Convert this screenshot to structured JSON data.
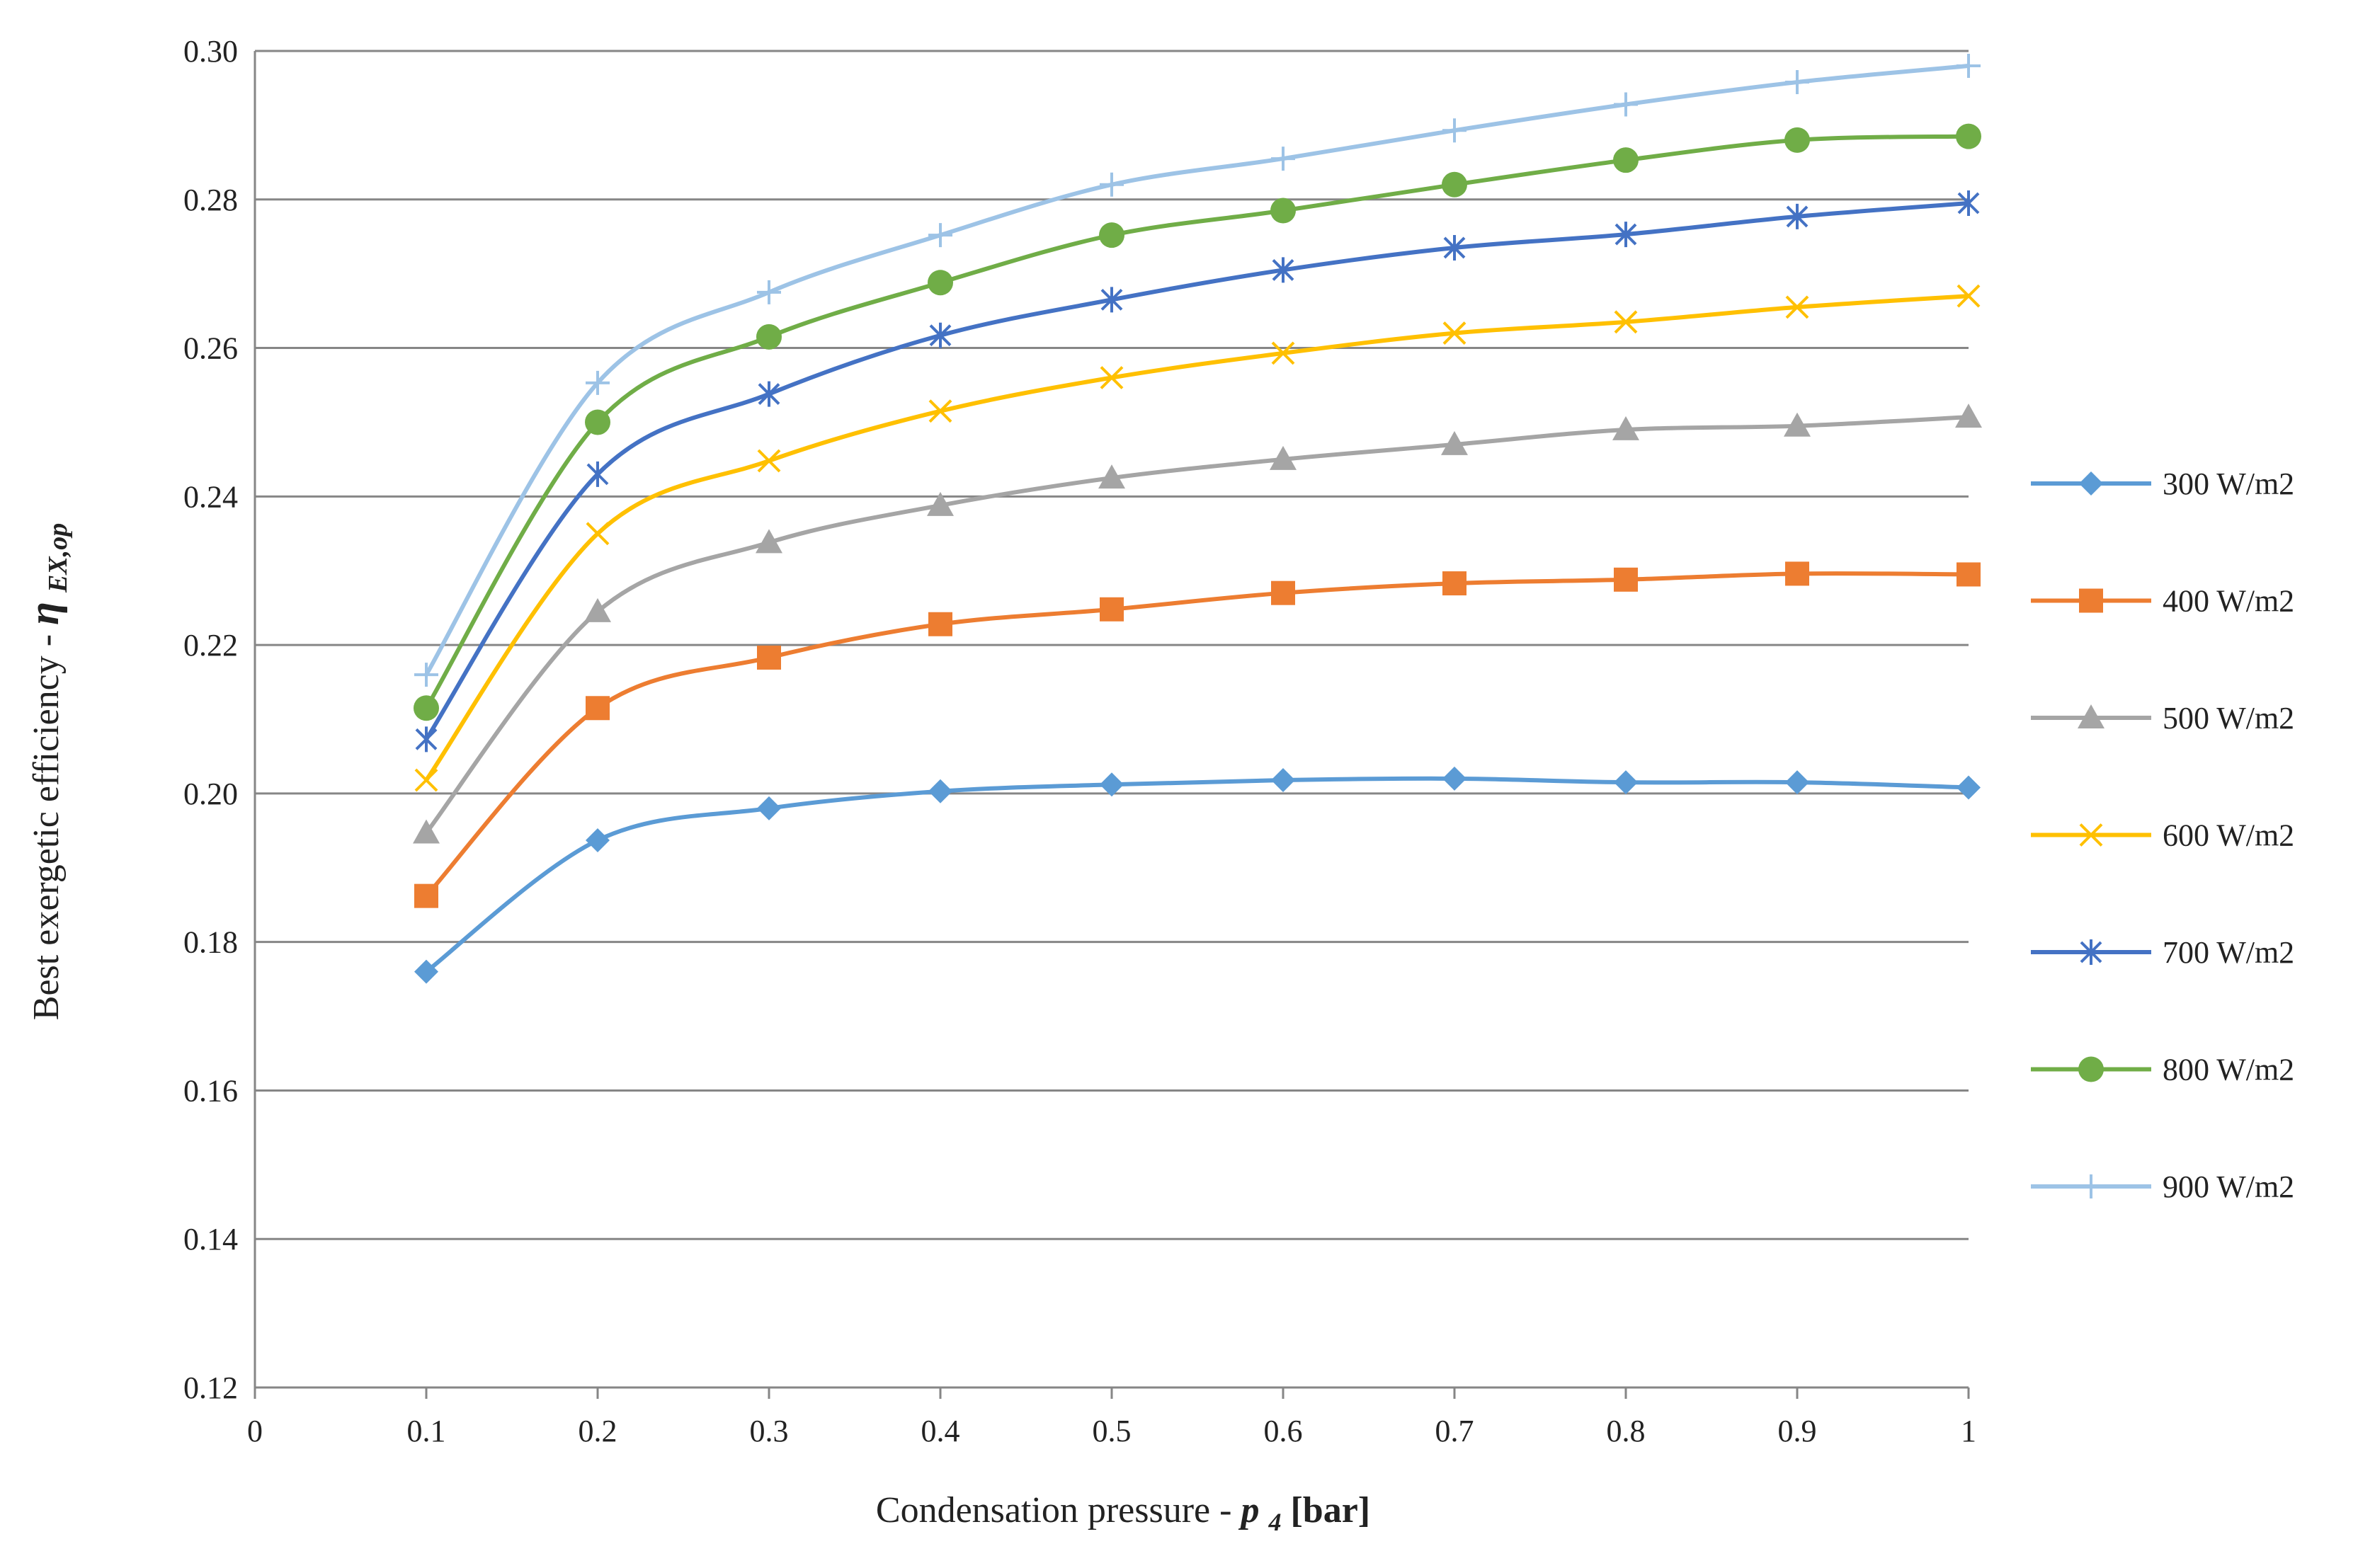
{
  "chart_data": {
    "type": "line",
    "title": "",
    "xlabel": {
      "text": "Condensation pressure - ",
      "symbol": "p",
      "subscript": "4",
      "unit": " [bar]"
    },
    "ylabel": {
      "text": "Best exergetic efficiency - ",
      "symbol": "η",
      "subscript": "EX,op"
    },
    "xlim": [
      0,
      1
    ],
    "ylim": [
      0.12,
      0.3
    ],
    "x_ticks": [
      0,
      0.1,
      0.2,
      0.3,
      0.4,
      0.5,
      0.6,
      0.7,
      0.8,
      0.9,
      1
    ],
    "x_tick_labels": [
      "0",
      "0.1",
      "0.2",
      "0.3",
      "0.4",
      "0.5",
      "0.6",
      "0.7",
      "0.8",
      "0.9",
      "1"
    ],
    "y_ticks": [
      0.12,
      0.14,
      0.16,
      0.18,
      0.2,
      0.22,
      0.24,
      0.26,
      0.28,
      0.3
    ],
    "y_tick_labels": [
      "0.12",
      "0.14",
      "0.16",
      "0.18",
      "0.20",
      "0.22",
      "0.24",
      "0.26",
      "0.28",
      "0.30"
    ],
    "grid": "horizontal",
    "legend_position": "right",
    "x": [
      0.1,
      0.2,
      0.3,
      0.4,
      0.5,
      0.6,
      0.7,
      0.8,
      0.9,
      1.0
    ],
    "series": [
      {
        "name": "300 W/m2",
        "color": "#5b9bd5",
        "marker": "diamond",
        "values": [
          0.176,
          0.1937,
          0.198,
          0.2003,
          0.2012,
          0.2018,
          0.202,
          0.2015,
          0.2015,
          0.2008
        ]
      },
      {
        "name": "400 W/m2",
        "color": "#ed7d31",
        "marker": "square",
        "values": [
          0.1862,
          0.2115,
          0.2183,
          0.2228,
          0.2248,
          0.227,
          0.2283,
          0.2288,
          0.2296,
          0.2295
        ]
      },
      {
        "name": "500 W/m2",
        "color": "#a5a5a5",
        "marker": "triangle",
        "values": [
          0.1947,
          0.2245,
          0.2338,
          0.2388,
          0.2425,
          0.245,
          0.247,
          0.249,
          0.2495,
          0.2507
        ]
      },
      {
        "name": "600 W/m2",
        "color": "#ffc000",
        "marker": "x",
        "values": [
          0.2018,
          0.235,
          0.2448,
          0.2515,
          0.256,
          0.2593,
          0.262,
          0.2635,
          0.2655,
          0.267
        ]
      },
      {
        "name": "700 W/m2",
        "color": "#4472c4",
        "marker": "star",
        "values": [
          0.2073,
          0.243,
          0.2538,
          0.2617,
          0.2665,
          0.2705,
          0.2735,
          0.2753,
          0.2777,
          0.2795
        ]
      },
      {
        "name": "800 W/m2",
        "color": "#70ad47",
        "marker": "circle",
        "values": [
          0.2115,
          0.25,
          0.2615,
          0.2688,
          0.2752,
          0.2785,
          0.282,
          0.2853,
          0.288,
          0.2885
        ]
      },
      {
        "name": "900 W/m2",
        "color": "#9dc3e6",
        "marker": "plus",
        "values": [
          0.216,
          0.2553,
          0.2675,
          0.2752,
          0.282,
          0.2855,
          0.2893,
          0.2928,
          0.2958,
          0.298
        ]
      }
    ]
  }
}
